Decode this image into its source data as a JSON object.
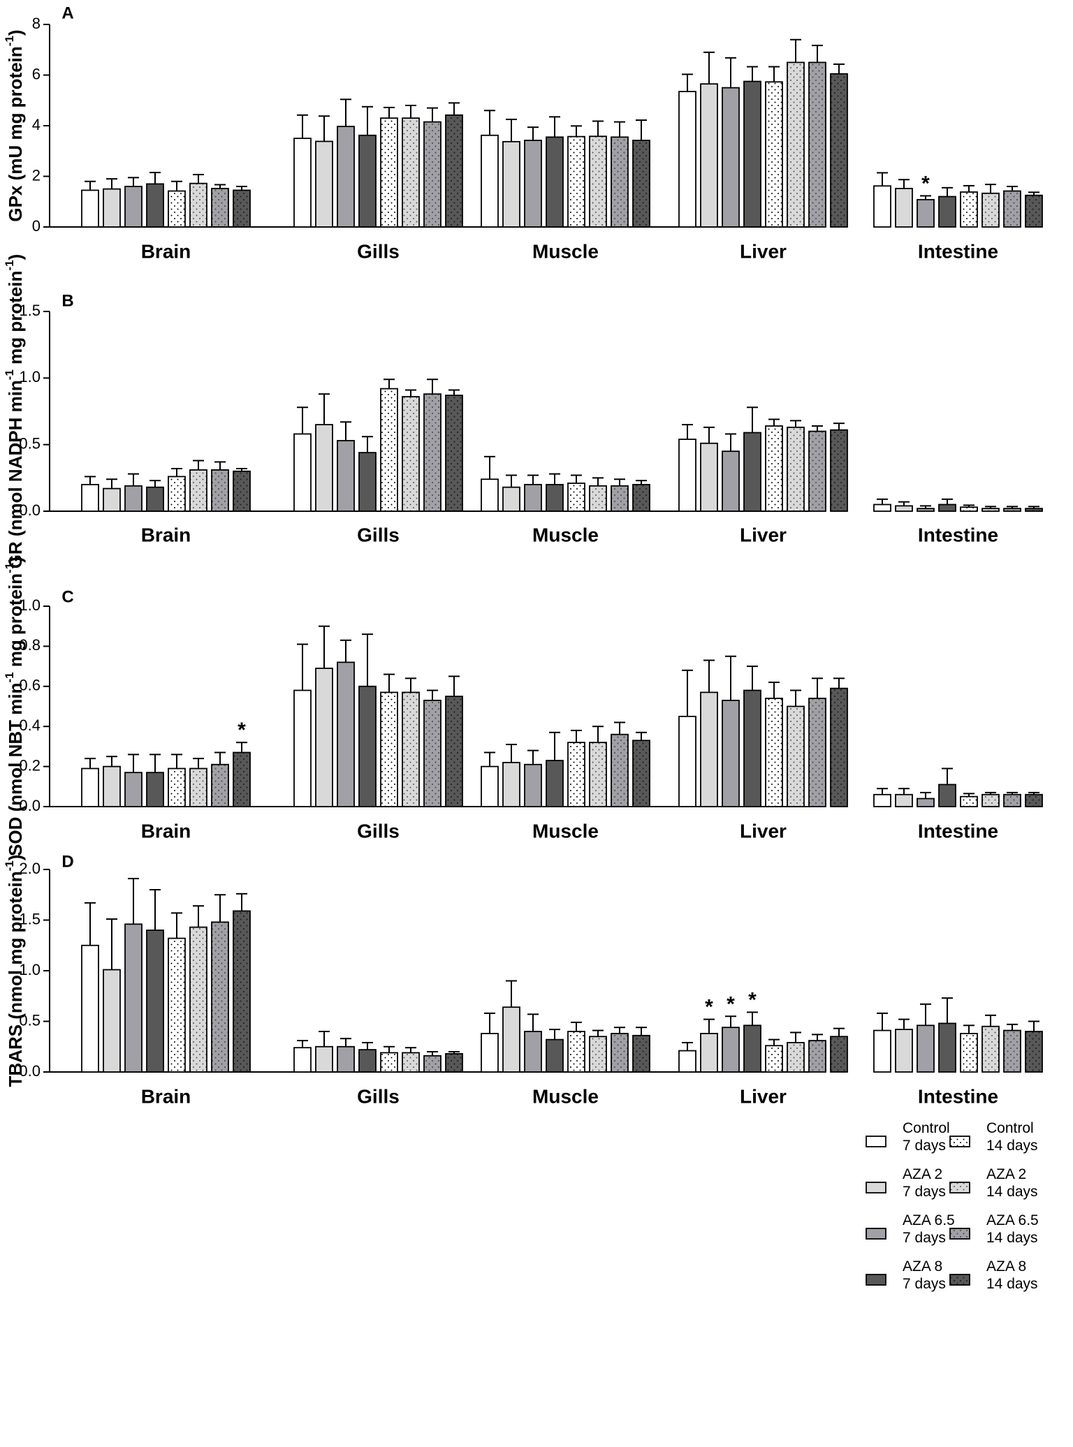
{
  "legend": [
    {
      "name": "Control",
      "sub": "7 days",
      "fill": "#ffffff",
      "pattern": false
    },
    {
      "name": "AZA 2",
      "sub": "7 days",
      "fill": "#d9d9d9",
      "pattern": false
    },
    {
      "name": "AZA 6.5",
      "sub": "7 days",
      "fill": "#a0a0a6",
      "pattern": false
    },
    {
      "name": "AZA 8",
      "sub": "7 days",
      "fill": "#585858",
      "pattern": false
    },
    {
      "name": "Control",
      "sub": "14 days",
      "fill": "#ffffff",
      "pattern": true
    },
    {
      "name": "AZA 2",
      "sub": "14 days",
      "fill": "#d9d9d9",
      "pattern": true
    },
    {
      "name": "AZA 6.5",
      "sub": "14 days",
      "fill": "#a0a0a6",
      "pattern": true
    },
    {
      "name": "AZA 8",
      "sub": "14 days",
      "fill": "#585858",
      "pattern": true
    }
  ],
  "chart_data": [
    {
      "panel": "A",
      "type": "bar",
      "ylabel_main": "GPx (mU mg protein",
      "ylabel_sup": "-1",
      "ylabel_end": ")",
      "ylim": [
        0,
        8
      ],
      "yticks": [
        "0",
        "2",
        "4",
        "6",
        "8"
      ],
      "yticks_values": [
        0,
        2,
        4,
        6,
        8
      ],
      "categories": [
        "Brain",
        "Gills",
        "Muscle",
        "Liver",
        "Intestine"
      ],
      "series_names": [
        "Control 7 days",
        "AZA 2 7 days",
        "AZA 6.5 7 days",
        "AZA 8 7 days",
        "Control 14 days",
        "AZA 2 14 days",
        "AZA 6.5 14 days",
        "AZA 8 14 days"
      ],
      "values": [
        [
          1.45,
          1.5,
          1.6,
          1.7,
          1.42,
          1.72,
          1.52,
          1.45
        ],
        [
          3.5,
          3.38,
          3.97,
          3.62,
          4.3,
          4.3,
          4.15,
          4.42
        ],
        [
          3.62,
          3.37,
          3.42,
          3.55,
          3.57,
          3.58,
          3.55,
          3.42
        ],
        [
          5.35,
          5.65,
          5.5,
          5.75,
          5.73,
          6.5,
          6.5,
          6.05
        ],
        [
          1.62,
          1.52,
          1.08,
          1.2,
          1.38,
          1.33,
          1.42,
          1.25
        ]
      ],
      "errors": [
        [
          0.35,
          0.4,
          0.35,
          0.45,
          0.38,
          0.35,
          0.15,
          0.15
        ],
        [
          0.92,
          1.0,
          1.07,
          1.13,
          0.42,
          0.5,
          0.55,
          0.48
        ],
        [
          0.98,
          0.88,
          0.52,
          0.8,
          0.42,
          0.6,
          0.6,
          0.8
        ],
        [
          0.68,
          1.25,
          1.18,
          0.58,
          0.6,
          0.9,
          0.67,
          0.38
        ],
        [
          0.52,
          0.35,
          0.15,
          0.35,
          0.25,
          0.35,
          0.18,
          0.12
        ]
      ],
      "significance": [
        {
          "category": 4,
          "series": 2,
          "label": "*"
        }
      ]
    },
    {
      "panel": "B",
      "type": "bar",
      "ylabel_main": "GR (nmol NADPH min",
      "ylabel_sup": "-1",
      "ylabel_mid": " mg protein",
      "ylabel_sup2": "-1",
      "ylabel_end": ")",
      "ylim": [
        0,
        1.5
      ],
      "yticks": [
        "0.0",
        "0.5",
        "1.0",
        "1.5"
      ],
      "yticks_values": [
        0,
        0.5,
        1.0,
        1.5
      ],
      "categories": [
        "Brain",
        "Gills",
        "Muscle",
        "Liver",
        "Intestine"
      ],
      "series_names": [
        "Control 7 days",
        "AZA 2 7 days",
        "AZA 6.5 7 days",
        "AZA 8 7 days",
        "Control 14 days",
        "AZA 2 14 days",
        "AZA 6.5 14 days",
        "AZA 8 14 days"
      ],
      "values": [
        [
          0.2,
          0.17,
          0.19,
          0.18,
          0.26,
          0.31,
          0.31,
          0.3
        ],
        [
          0.58,
          0.65,
          0.53,
          0.44,
          0.92,
          0.86,
          0.88,
          0.87
        ],
        [
          0.24,
          0.18,
          0.2,
          0.2,
          0.21,
          0.19,
          0.19,
          0.2
        ],
        [
          0.54,
          0.51,
          0.45,
          0.59,
          0.64,
          0.63,
          0.6,
          0.61
        ],
        [
          0.05,
          0.04,
          0.02,
          0.05,
          0.03,
          0.02,
          0.02,
          0.02
        ]
      ],
      "errors": [
        [
          0.06,
          0.07,
          0.09,
          0.05,
          0.06,
          0.07,
          0.06,
          0.02
        ],
        [
          0.2,
          0.23,
          0.14,
          0.12,
          0.07,
          0.05,
          0.11,
          0.04
        ],
        [
          0.17,
          0.09,
          0.07,
          0.08,
          0.06,
          0.06,
          0.05,
          0.03
        ],
        [
          0.11,
          0.12,
          0.13,
          0.19,
          0.05,
          0.05,
          0.04,
          0.05
        ],
        [
          0.04,
          0.03,
          0.02,
          0.04,
          0.015,
          0.015,
          0.015,
          0.015
        ]
      ],
      "significance": []
    },
    {
      "panel": "C",
      "type": "bar",
      "ylabel_main": "SOD (nmol NBT min",
      "ylabel_sup": "-1",
      "ylabel_mid": " mg protein",
      "ylabel_sup2": "-1",
      "ylabel_end": ")",
      "ylim": [
        0,
        1.0
      ],
      "yticks": [
        "0.0",
        "0.2",
        "0.4",
        "0.6",
        "0.8",
        "1.0"
      ],
      "yticks_values": [
        0,
        0.2,
        0.4,
        0.6,
        0.8,
        1.0
      ],
      "categories": [
        "Brain",
        "Gills",
        "Muscle",
        "Liver",
        "Intestine"
      ],
      "series_names": [
        "Control 7 days",
        "AZA 2 7 days",
        "AZA 6.5 7 days",
        "AZA 8 7 days",
        "Control 14 days",
        "AZA 2 14 days",
        "AZA 6.5 14 days",
        "AZA 8 14 days"
      ],
      "values": [
        [
          0.19,
          0.2,
          0.17,
          0.17,
          0.19,
          0.19,
          0.21,
          0.27
        ],
        [
          0.58,
          0.69,
          0.72,
          0.6,
          0.57,
          0.57,
          0.53,
          0.55
        ],
        [
          0.2,
          0.22,
          0.21,
          0.23,
          0.32,
          0.32,
          0.36,
          0.33
        ],
        [
          0.45,
          0.57,
          0.53,
          0.58,
          0.54,
          0.5,
          0.54,
          0.59
        ],
        [
          0.06,
          0.06,
          0.04,
          0.11,
          0.05,
          0.06,
          0.06,
          0.06
        ]
      ],
      "errors": [
        [
          0.05,
          0.05,
          0.09,
          0.09,
          0.07,
          0.05,
          0.06,
          0.05
        ],
        [
          0.23,
          0.21,
          0.11,
          0.26,
          0.09,
          0.07,
          0.05,
          0.1
        ],
        [
          0.07,
          0.09,
          0.07,
          0.14,
          0.06,
          0.08,
          0.06,
          0.04
        ],
        [
          0.23,
          0.16,
          0.22,
          0.12,
          0.08,
          0.08,
          0.1,
          0.05
        ],
        [
          0.03,
          0.03,
          0.03,
          0.08,
          0.015,
          0.01,
          0.01,
          0.01
        ]
      ],
      "significance": [
        {
          "category": 0,
          "series": 7,
          "label": "*"
        }
      ]
    },
    {
      "panel": "D",
      "type": "bar",
      "ylabel_main": "TBARS (nmol mg protein",
      "ylabel_sup": "-1",
      "ylabel_end": ")",
      "ylim": [
        0,
        2.0
      ],
      "yticks": [
        "0.0",
        "0.5",
        "1.0",
        "1.5",
        "2.0"
      ],
      "yticks_values": [
        0,
        0.5,
        1.0,
        1.5,
        2.0
      ],
      "categories": [
        "Brain",
        "Gills",
        "Muscle",
        "Liver",
        "Intestine"
      ],
      "series_names": [
        "Control 7 days",
        "AZA 2 7 days",
        "AZA 6.5 7 days",
        "AZA 8 7 days",
        "Control 14 days",
        "AZA 2 14 days",
        "AZA 6.5 14 days",
        "AZA 8 14 days"
      ],
      "values": [
        [
          1.25,
          1.01,
          1.46,
          1.4,
          1.32,
          1.43,
          1.48,
          1.59
        ],
        [
          0.24,
          0.25,
          0.25,
          0.22,
          0.19,
          0.19,
          0.16,
          0.18
        ],
        [
          0.38,
          0.64,
          0.4,
          0.32,
          0.4,
          0.35,
          0.38,
          0.36
        ],
        [
          0.21,
          0.38,
          0.44,
          0.46,
          0.26,
          0.29,
          0.31,
          0.35
        ],
        [
          0.41,
          0.42,
          0.46,
          0.48,
          0.38,
          0.45,
          0.41,
          0.4
        ]
      ],
      "errors": [
        [
          0.42,
          0.5,
          0.45,
          0.4,
          0.25,
          0.21,
          0.27,
          0.17
        ],
        [
          0.07,
          0.15,
          0.08,
          0.07,
          0.06,
          0.05,
          0.04,
          0.02
        ],
        [
          0.2,
          0.26,
          0.17,
          0.1,
          0.09,
          0.06,
          0.06,
          0.08
        ],
        [
          0.08,
          0.14,
          0.11,
          0.13,
          0.06,
          0.1,
          0.06,
          0.08
        ],
        [
          0.17,
          0.1,
          0.21,
          0.25,
          0.08,
          0.11,
          0.06,
          0.1
        ]
      ],
      "significance": [
        {
          "category": 3,
          "series": 1,
          "label": "*"
        },
        {
          "category": 3,
          "series": 2,
          "label": "*"
        },
        {
          "category": 3,
          "series": 3,
          "label": "*"
        }
      ]
    }
  ]
}
